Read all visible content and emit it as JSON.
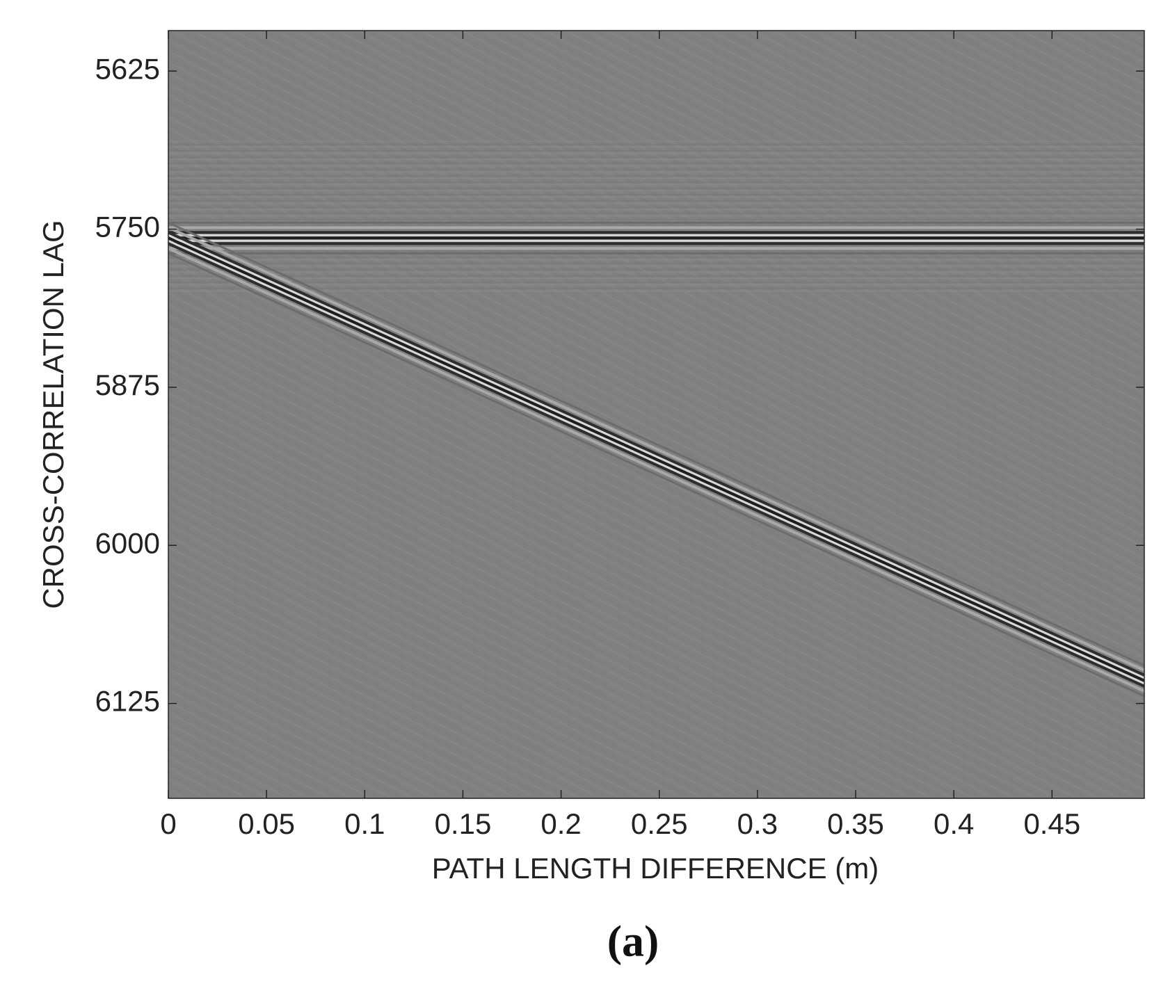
{
  "chart_data": {
    "type": "image",
    "xlabel": "PATH LENGTH DIFFERENCE (m)",
    "ylabel": "CROSS-CORRELATION LAG",
    "caption": "(a)",
    "xlim": [
      0,
      0.497
    ],
    "ylim": [
      5593,
      6200
    ],
    "y_reversed": true,
    "xticks": [
      0,
      0.05,
      0.1,
      0.15,
      0.2,
      0.25,
      0.3,
      0.35,
      0.4,
      0.45
    ],
    "yticks": [
      5625,
      5750,
      5875,
      6000,
      6125
    ],
    "background": "#808080",
    "lines": [
      {
        "x": [
          0,
          0.497
        ],
        "values": [
          5757,
          5757
        ]
      },
      {
        "x": [
          0,
          0.497
        ],
        "values": [
          5757,
          6107
        ]
      }
    ]
  }
}
